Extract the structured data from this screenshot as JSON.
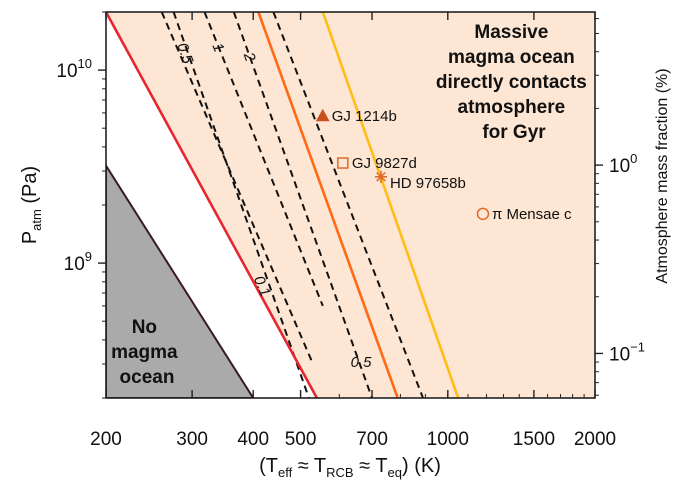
{
  "chart_data": {
    "type": "line",
    "title": "",
    "xlabel": {
      "main": "(T",
      "sub1": "eff",
      "approx1": " ≈ T",
      "sub2": "RCB",
      "approx2": " ≈ T",
      "sub3": "eq",
      "end": ") (K)"
    },
    "ylabel": {
      "main": "P",
      "sub": "atm",
      "end": " (Pa)"
    },
    "y2label": "Atmosphere mass fraction (%)",
    "xscale": "log",
    "yscale": "log",
    "xlim": [
      200,
      2000
    ],
    "ylim": [
      200000000,
      20000000000
    ],
    "y2lim": [
      0.058,
      6.5
    ],
    "xticks": [
      {
        "value": 200,
        "label": "200"
      },
      {
        "value": 300,
        "label": "300"
      },
      {
        "value": 400,
        "label": "400"
      },
      {
        "value": 500,
        "label": "500"
      },
      {
        "value": 700,
        "label": "700"
      },
      {
        "value": 1000,
        "label": "1000"
      },
      {
        "value": 1500,
        "label": "1500"
      },
      {
        "value": 2000,
        "label": "2000"
      }
    ],
    "yticks": [
      {
        "value": 1000000000,
        "base": "10",
        "exp": "9"
      },
      {
        "value": 10000000000,
        "base": "10",
        "exp": "10"
      }
    ],
    "y2ticks": [
      {
        "value": 0.1,
        "base": "10",
        "exp": "−1"
      },
      {
        "value": 1,
        "base": "10",
        "exp": "0"
      }
    ],
    "regions": [
      {
        "name": "no-magma-ocean",
        "lines": [
          "No",
          "magma",
          "ocean"
        ],
        "color": "#aaaaaa",
        "boundary": [
          [
            200,
            3200000000
          ],
          [
            400,
            200000000
          ]
        ]
      },
      {
        "name": "massive-magma-ocean",
        "lines": [
          "Massive",
          "magma ocean",
          "directly contacts",
          "atmosphere",
          "for Gyr"
        ],
        "color": "#fde6d4",
        "boundary": [
          [
            200,
            20000000000
          ],
          [
            540,
            200000000
          ]
        ]
      }
    ],
    "solid_lines": [
      {
        "color": "#e8262f",
        "points": [
          [
            200,
            20000000000
          ],
          [
            540,
            200000000
          ]
        ]
      },
      {
        "color": "#ff6a16",
        "points": [
          [
            410,
            20000000000
          ],
          [
            790,
            200000000
          ]
        ]
      },
      {
        "color": "#ffbe16",
        "points": [
          [
            555,
            20000000000
          ],
          [
            1050,
            200000000
          ]
        ]
      }
    ],
    "dashed_contours": [
      {
        "label": "0.5",
        "points": [
          [
            275,
            20000000000
          ],
          [
            520,
            200000000
          ]
        ]
      },
      {
        "label": "1",
        "points": [
          [
            318,
            20000000000
          ],
          [
            555,
            600000000
          ]
        ]
      },
      {
        "label": "2",
        "points": [
          [
            365,
            20000000000
          ],
          [
            700,
            200000000
          ]
        ]
      },
      {
        "label": "0.1",
        "points": [
          [
            260,
            20000000000
          ],
          [
            530,
            300000000
          ]
        ]
      },
      {
        "label": "0.5",
        "points": [
          [
            440,
            20000000000
          ],
          [
            890,
            200000000
          ]
        ]
      }
    ],
    "planets": [
      {
        "name": "GJ 1214b",
        "x": 555,
        "y": 5800000000,
        "marker": "filled-triangle",
        "color": "#c8501e"
      },
      {
        "name": "GJ 9827d",
        "x": 610,
        "y": 3300000000,
        "marker": "open-square",
        "color": "#e06a2a"
      },
      {
        "name": "HD 97658b",
        "x": 730,
        "y": 2800000000,
        "marker": "asterisk",
        "color": "#e06a2a"
      },
      {
        "name": "π Mensae c",
        "x": 1180,
        "y": 1800000000,
        "marker": "open-circle",
        "color": "#e06a2a"
      }
    ],
    "grid": false,
    "legend": "none"
  }
}
